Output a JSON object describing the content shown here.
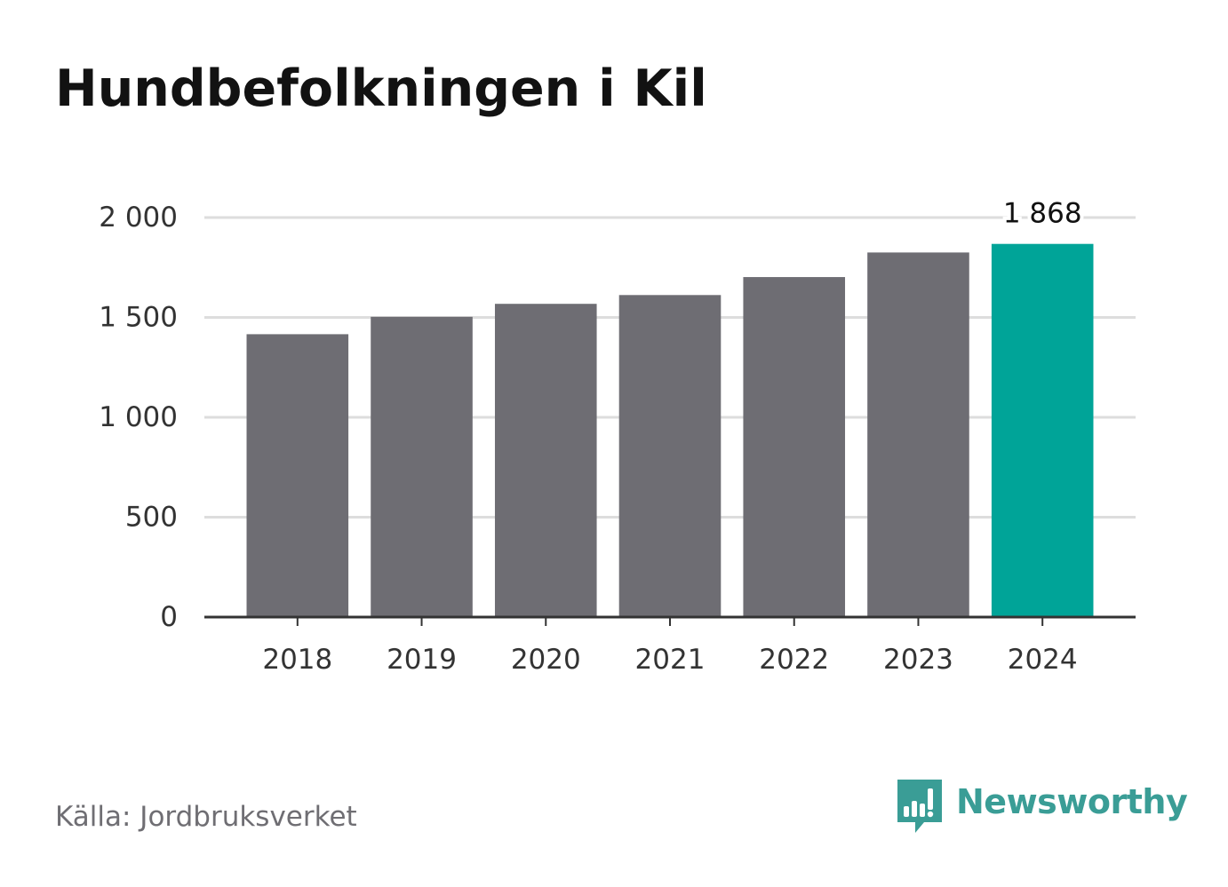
{
  "chart_data": {
    "type": "bar",
    "title": "Hundbefolkningen i Kil",
    "categories": [
      "2018",
      "2019",
      "2020",
      "2021",
      "2022",
      "2023",
      "2024"
    ],
    "values": [
      1416,
      1503,
      1568,
      1612,
      1702,
      1825,
      1868
    ],
    "ylim": [
      0,
      2000
    ],
    "yticks": [
      0,
      500,
      1000,
      1500,
      2000
    ],
    "ytick_labels": [
      "0",
      "500",
      "1 000",
      "1 500",
      "2 000"
    ],
    "xlabel": "",
    "ylabel": "",
    "grid": true,
    "highlight_index": 6,
    "highlight_label": "1 868",
    "colors": {
      "bar": "#6e6d73",
      "highlight": "#00a498",
      "grid": "#dddddd",
      "axis": "#333333",
      "tick_text": "#333333"
    }
  },
  "footer": {
    "source": "Källa: Jordbruksverket",
    "brand": "Newsworthy",
    "brand_icon": "newsworthy-logo-icon",
    "brand_color": "#3a9d96"
  }
}
